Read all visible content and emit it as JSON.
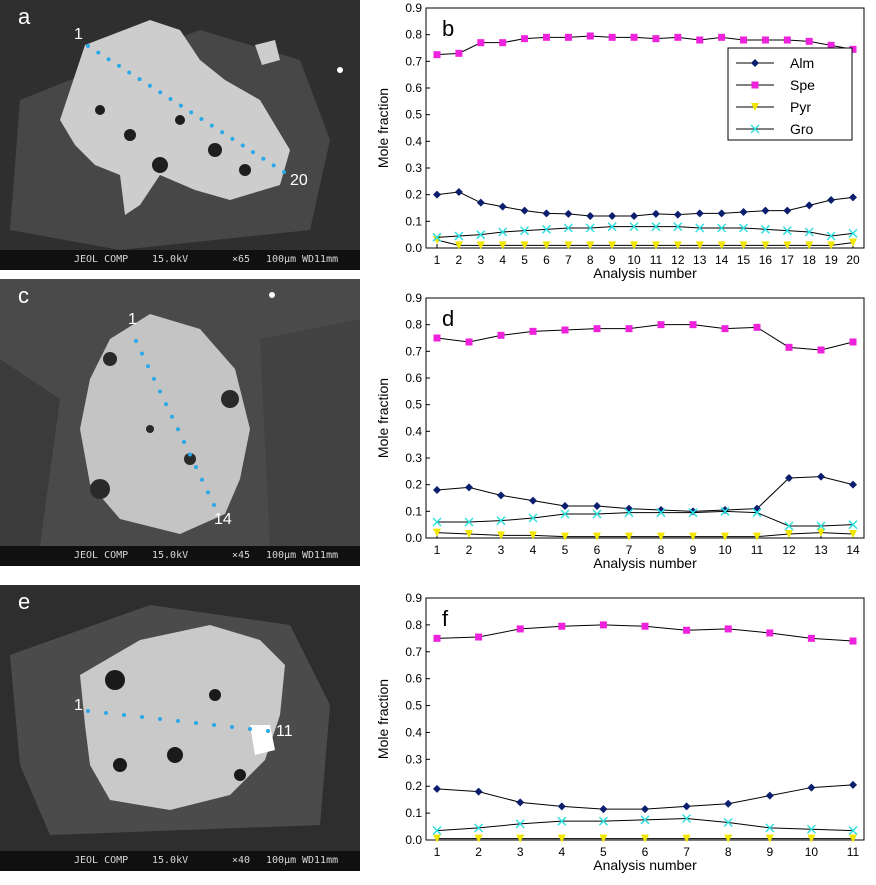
{
  "panels": {
    "a": {
      "letter": "a",
      "start_label": "1",
      "end_label": "20",
      "bar": {
        "left": "JEOL COMP",
        "kv": "15.0kV",
        "mag": "×65",
        "scale": "100μm",
        "wd": "WD11mm"
      }
    },
    "c": {
      "letter": "c",
      "start_label": "1",
      "end_label": "14",
      "bar": {
        "left": "JEOL COMP",
        "kv": "15.0kV",
        "mag": "×45",
        "scale": "100μm",
        "wd": "WD11mm"
      }
    },
    "e": {
      "letter": "e",
      "start_label": "1",
      "end_label": "11",
      "bar": {
        "left": "JEOL COMP",
        "kv": "15.0kV",
        "mag": "×40",
        "scale": "100μm",
        "wd": "WD11mm"
      }
    }
  },
  "colors": {
    "Alm": "#0b1f6e",
    "Spe": "#ee22dd",
    "Pyr": "#f2e600",
    "Gro": "#33e0e0",
    "trace_dots": "#2aa8e8"
  },
  "chart_data": [
    {
      "type": "line",
      "letter": "b",
      "x": [
        1,
        2,
        3,
        4,
        5,
        6,
        7,
        8,
        9,
        10,
        11,
        12,
        13,
        14,
        15,
        16,
        17,
        18,
        19,
        20
      ],
      "xlabel": "Analysis number",
      "ylabel": "Mole fraction",
      "ylim": [
        0,
        0.9
      ],
      "yticks": [
        "0.0",
        "0.1",
        "0.2",
        "0.3",
        "0.4",
        "0.5",
        "0.6",
        "0.7",
        "0.8",
        "0.9"
      ],
      "legend": {
        "placement": "top-right",
        "entries": [
          "Alm",
          "Spe",
          "Pyr",
          "Gro"
        ]
      },
      "series": [
        {
          "name": "Alm",
          "marker": "diamond",
          "values": [
            0.2,
            0.21,
            0.17,
            0.155,
            0.14,
            0.13,
            0.128,
            0.12,
            0.12,
            0.12,
            0.128,
            0.125,
            0.13,
            0.13,
            0.135,
            0.14,
            0.14,
            0.16,
            0.18,
            0.19
          ]
        },
        {
          "name": "Spe",
          "marker": "square",
          "values": [
            0.725,
            0.73,
            0.77,
            0.77,
            0.785,
            0.79,
            0.79,
            0.795,
            0.79,
            0.79,
            0.785,
            0.79,
            0.78,
            0.79,
            0.78,
            0.78,
            0.78,
            0.775,
            0.76,
            0.745
          ]
        },
        {
          "name": "Pyr",
          "marker": "triangle",
          "values": [
            0.03,
            0.01,
            0.01,
            0.01,
            0.01,
            0.01,
            0.01,
            0.01,
            0.01,
            0.01,
            0.01,
            0.01,
            0.01,
            0.01,
            0.01,
            0.01,
            0.01,
            0.01,
            0.01,
            0.02
          ]
        },
        {
          "name": "Gro",
          "marker": "x",
          "values": [
            0.04,
            0.045,
            0.05,
            0.06,
            0.065,
            0.07,
            0.075,
            0.075,
            0.08,
            0.08,
            0.08,
            0.08,
            0.075,
            0.075,
            0.075,
            0.07,
            0.065,
            0.06,
            0.045,
            0.055
          ]
        }
      ]
    },
    {
      "type": "line",
      "letter": "d",
      "x": [
        1,
        2,
        3,
        4,
        5,
        6,
        7,
        8,
        9,
        10,
        11,
        12,
        13,
        14
      ],
      "xlabel": "Analysis number",
      "ylabel": "Mole fraction",
      "ylim": [
        0,
        0.9
      ],
      "yticks": [
        "0.0",
        "0.1",
        "0.2",
        "0.3",
        "0.4",
        "0.5",
        "0.6",
        "0.7",
        "0.8",
        "0.9"
      ],
      "series": [
        {
          "name": "Alm",
          "marker": "diamond",
          "values": [
            0.18,
            0.19,
            0.16,
            0.14,
            0.12,
            0.12,
            0.11,
            0.105,
            0.1,
            0.105,
            0.11,
            0.225,
            0.23,
            0.2
          ]
        },
        {
          "name": "Spe",
          "marker": "square",
          "values": [
            0.75,
            0.735,
            0.76,
            0.775,
            0.78,
            0.785,
            0.785,
            0.8,
            0.8,
            0.785,
            0.79,
            0.715,
            0.705,
            0.735
          ]
        },
        {
          "name": "Pyr",
          "marker": "triangle",
          "values": [
            0.02,
            0.015,
            0.01,
            0.01,
            0.005,
            0.005,
            0.005,
            0.005,
            0.005,
            0.005,
            0.005,
            0.015,
            0.02,
            0.015
          ]
        },
        {
          "name": "Gro",
          "marker": "x",
          "values": [
            0.06,
            0.06,
            0.065,
            0.075,
            0.09,
            0.09,
            0.095,
            0.095,
            0.095,
            0.1,
            0.095,
            0.045,
            0.045,
            0.05
          ]
        }
      ]
    },
    {
      "type": "line",
      "letter": "f",
      "x": [
        1,
        2,
        3,
        4,
        5,
        6,
        7,
        8,
        9,
        10,
        11
      ],
      "xlabel": "Analysis number",
      "ylabel": "Mole fraction",
      "ylim": [
        0,
        0.9
      ],
      "yticks": [
        "0.0",
        "0.1",
        "0.2",
        "0.3",
        "0.4",
        "0.5",
        "0.6",
        "0.7",
        "0.8",
        "0.9"
      ],
      "series": [
        {
          "name": "Alm",
          "marker": "diamond",
          "values": [
            0.19,
            0.18,
            0.14,
            0.125,
            0.115,
            0.115,
            0.125,
            0.135,
            0.165,
            0.195,
            0.205
          ]
        },
        {
          "name": "Spe",
          "marker": "square",
          "values": [
            0.75,
            0.755,
            0.785,
            0.795,
            0.8,
            0.795,
            0.78,
            0.785,
            0.77,
            0.75,
            0.74
          ]
        },
        {
          "name": "Pyr",
          "marker": "triangle",
          "values": [
            0.005,
            0.005,
            0.005,
            0.005,
            0.005,
            0.005,
            0.005,
            0.005,
            0.005,
            0.005,
            0.005
          ]
        },
        {
          "name": "Gro",
          "marker": "x",
          "values": [
            0.035,
            0.045,
            0.06,
            0.07,
            0.07,
            0.075,
            0.08,
            0.065,
            0.045,
            0.04,
            0.035
          ]
        }
      ]
    }
  ]
}
